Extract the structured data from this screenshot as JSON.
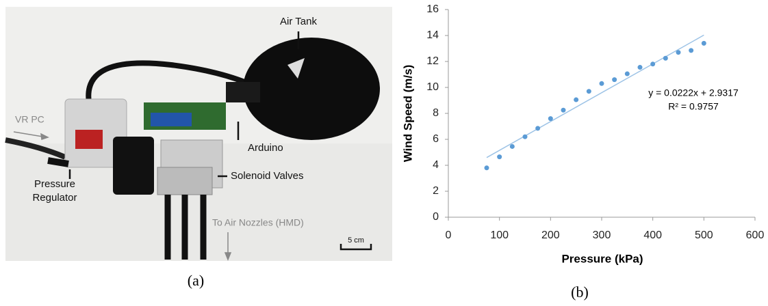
{
  "panel_a": {
    "labels": {
      "air_tank": "Air Tank",
      "vr_pc": "VR PC",
      "arduino": "Arduino",
      "solenoid_valves": "Solenoid Valves",
      "pressure_regulator": [
        "Pressure",
        "Regulator"
      ],
      "nozzles": "To Air Nozzles (HMD)",
      "scale": "5 cm"
    },
    "caption": "(a)"
  },
  "chart_data": {
    "type": "scatter",
    "caption": "(b)",
    "xlabel": "Pressure (kPa)",
    "ylabel": "Wind Speed (m/s)",
    "x": [
      75,
      100,
      125,
      150,
      175,
      200,
      225,
      250,
      275,
      300,
      325,
      350,
      375,
      400,
      425,
      450,
      475,
      500
    ],
    "values": [
      3.8,
      4.65,
      5.45,
      6.2,
      6.85,
      7.6,
      8.25,
      9.05,
      9.7,
      10.3,
      10.6,
      11.05,
      11.55,
      11.8,
      12.25,
      12.7,
      12.85,
      13.4
    ],
    "color": "#5b9bd5",
    "trendline": {
      "slope": 0.0222,
      "intercept": 2.9317,
      "equation": "y = 0.0222x + 2.9317",
      "r2": "R² = 0.9757",
      "color": "#9dc3e6"
    },
    "xlim": [
      0,
      600
    ],
    "xticks": [
      0,
      100,
      200,
      300,
      400,
      500,
      600
    ],
    "ylim": [
      0,
      16
    ],
    "yticks": [
      0,
      2,
      4,
      6,
      8,
      10,
      12,
      14,
      16
    ],
    "grid": false
  }
}
